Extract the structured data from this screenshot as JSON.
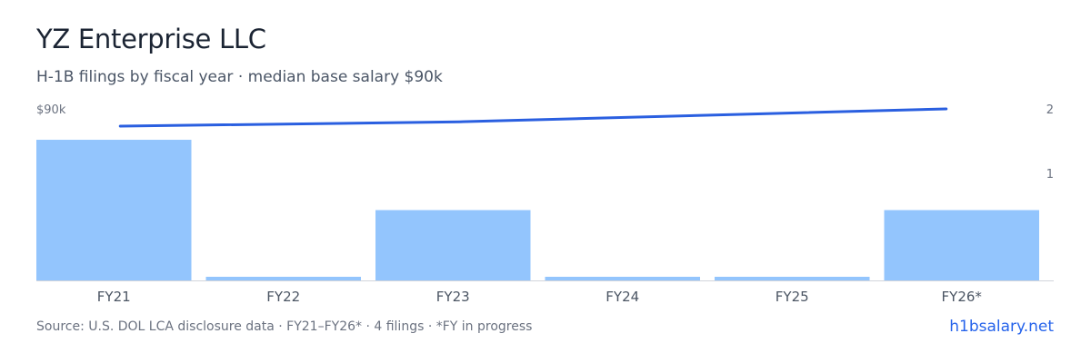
{
  "header": {
    "title": "YZ Enterprise LLC",
    "subtitle": "H-1B filings by fiscal year · median base salary $90k"
  },
  "footer": {
    "source": "Source: U.S. DOL LCA disclosure data · FY21–FY26* · 4 filings · *FY in progress",
    "link": "h1bsalary.net"
  },
  "colors": {
    "bar": "#93c5fd",
    "line": "#2a5fe0",
    "axis": "#d1d5db",
    "tick": "#6b7280"
  },
  "chart_data": {
    "type": "bar",
    "categories": [
      "FY21",
      "FY22",
      "FY23",
      "FY24",
      "FY25",
      "FY26*"
    ],
    "series": [
      {
        "type": "bar",
        "axis": "right",
        "values": [
          2,
          0,
          1,
          0,
          0,
          1
        ]
      },
      {
        "type": "line",
        "axis": "left",
        "values": [
          88,
          null,
          88.5,
          null,
          null,
          90
        ]
      }
    ],
    "y_left": {
      "ticks": [
        "$90k"
      ],
      "max": 90
    },
    "y_right": {
      "ticks": [
        "2",
        "1"
      ],
      "ylim": [
        0,
        2
      ]
    },
    "grid": false,
    "legend": "none"
  }
}
